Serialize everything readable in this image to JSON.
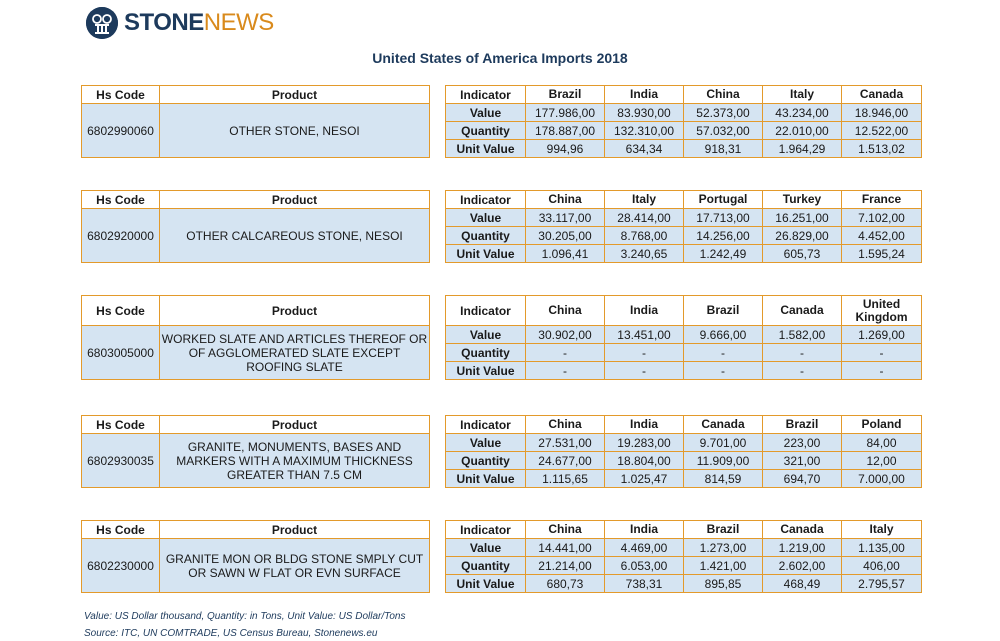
{
  "brand": {
    "part1": "STONE",
    "part2": "NEWS"
  },
  "title": "United States of America Imports 2018",
  "tables": [
    {
      "hs_header": "Hs Code",
      "product_header": "Product",
      "hs": "6802990060",
      "product": "OTHER STONE, NESOI",
      "ind_header": "Indicator",
      "countries": [
        "Brazil",
        "India",
        "China",
        "Italy",
        "Canada"
      ],
      "rows": [
        {
          "label": "Value",
          "vals": [
            "177.986,00",
            "83.930,00",
            "52.373,00",
            "43.234,00",
            "18.946,00"
          ]
        },
        {
          "label": "Quantity",
          "vals": [
            "178.887,00",
            "132.310,00",
            "57.032,00",
            "22.010,00",
            "12.522,00"
          ]
        },
        {
          "label": "Unit Value",
          "vals": [
            "994,96",
            "634,34",
            "918,31",
            "1.964,29",
            "1.513,02"
          ]
        }
      ]
    },
    {
      "hs_header": "Hs Code",
      "product_header": "Product",
      "hs": "6802920000",
      "product": "OTHER CALCAREOUS STONE, NESOI",
      "ind_header": "Indicator",
      "countries": [
        "China",
        "Italy",
        "Portugal",
        "Turkey",
        "France"
      ],
      "rows": [
        {
          "label": "Value",
          "vals": [
            "33.117,00",
            "28.414,00",
            "17.713,00",
            "16.251,00",
            "7.102,00"
          ]
        },
        {
          "label": "Quantity",
          "vals": [
            "30.205,00",
            "8.768,00",
            "14.256,00",
            "26.829,00",
            "4.452,00"
          ]
        },
        {
          "label": "Unit Value",
          "vals": [
            "1.096,41",
            "3.240,65",
            "1.242,49",
            "605,73",
            "1.595,24"
          ]
        }
      ]
    },
    {
      "hs_header": "Hs Code",
      "product_header": "Product",
      "hs": "6803005000",
      "product": "WORKED SLATE AND ARTICLES THEREOF OR OF AGGLOMERATED SLATE EXCEPT ROOFING SLATE",
      "ind_header": "Indicator",
      "countries": [
        "China",
        "India",
        "Brazil",
        "Canada",
        "United Kingdom"
      ],
      "rows": [
        {
          "label": "Value",
          "vals": [
            "30.902,00",
            "13.451,00",
            "9.666,00",
            "1.582,00",
            "1.269,00"
          ]
        },
        {
          "label": "Quantity",
          "vals": [
            "-",
            "-",
            "-",
            "-",
            "-"
          ]
        },
        {
          "label": "Unit Value",
          "vals": [
            "-",
            "-",
            "-",
            "-",
            "-"
          ]
        }
      ]
    },
    {
      "hs_header": "Hs Code",
      "product_header": "Product",
      "hs": "6802930035",
      "product": "GRANITE, MONUMENTS, BASES AND MARKERS WITH A MAXIMUM THICKNESS GREATER THAN 7.5 CM",
      "ind_header": "Indicator",
      "countries": [
        "China",
        "India",
        "Canada",
        "Brazil",
        "Poland"
      ],
      "rows": [
        {
          "label": "Value",
          "vals": [
            "27.531,00",
            "19.283,00",
            "9.701,00",
            "223,00",
            "84,00"
          ]
        },
        {
          "label": "Quantity",
          "vals": [
            "24.677,00",
            "18.804,00",
            "11.909,00",
            "321,00",
            "12,00"
          ]
        },
        {
          "label": "Unit Value",
          "vals": [
            "1.115,65",
            "1.025,47",
            "814,59",
            "694,70",
            "7.000,00"
          ]
        }
      ]
    },
    {
      "hs_header": "Hs Code",
      "product_header": "Product",
      "hs": "6802230000",
      "product": "GRANITE MON OR BLDG STONE SMPLY CUT OR SAWN W FLAT OR EVN SURFACE",
      "ind_header": "Indicator",
      "countries": [
        "China",
        "India",
        "Brazil",
        "Canada",
        "Italy"
      ],
      "rows": [
        {
          "label": "Value",
          "vals": [
            "14.441,00",
            "4.469,00",
            "1.273,00",
            "1.219,00",
            "1.135,00"
          ]
        },
        {
          "label": "Quantity",
          "vals": [
            "21.214,00",
            "6.053,00",
            "1.421,00",
            "2.602,00",
            "406,00"
          ]
        },
        {
          "label": "Unit Value",
          "vals": [
            "680,73",
            "738,31",
            "895,85",
            "468,49",
            "2.795,57"
          ]
        }
      ]
    }
  ],
  "footnote": "Value: US Dollar thousand, Quantity: in Tons, Unit Value: US Dollar/Tons",
  "source": "Source: ITC, UN COMTRADE, US Census Bureau, Stonenews.eu",
  "colors": {
    "accent": "#1d3a5c",
    "border": "#e39a2b",
    "cell_fill": "#d5e4f2",
    "brand_orange": "#d98a1c"
  }
}
